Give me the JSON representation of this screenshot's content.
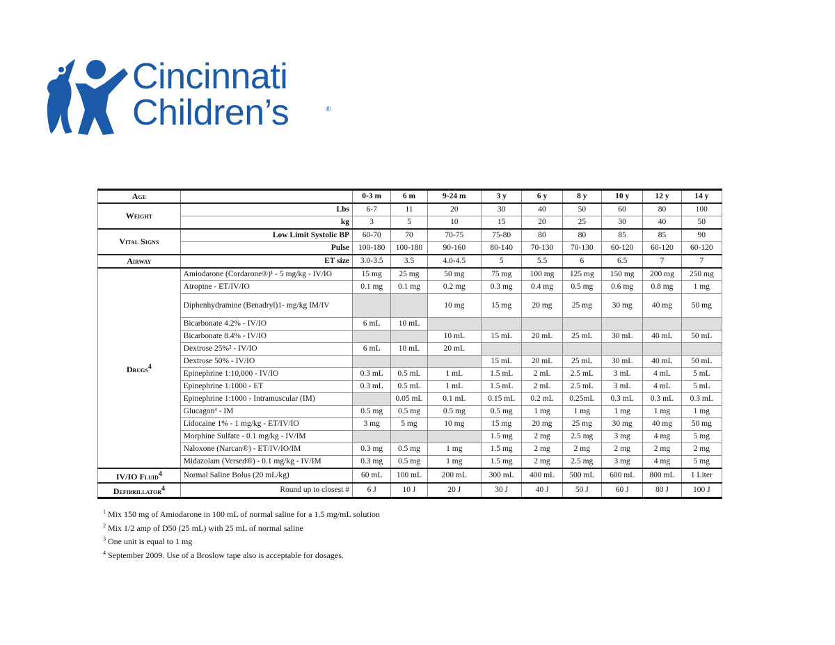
{
  "logo": {
    "line1": "Cincinnati",
    "line2": "Children’s",
    "reg": "®"
  },
  "header": {
    "age_label": "Age",
    "ages": [
      "0-3 m",
      "6 m",
      "9-24 m",
      "3 y",
      "6 y",
      "8 y",
      "10 y",
      "12 y",
      "14 y"
    ]
  },
  "weight": {
    "category": "Weight",
    "lbs_label": "Lbs",
    "lbs": [
      "6-7",
      "11",
      "20",
      "30",
      "40",
      "50",
      "60",
      "80",
      "100"
    ],
    "kg_label": "kg",
    "kg": [
      "3",
      "5",
      "10",
      "15",
      "20",
      "25",
      "30",
      "40",
      "50"
    ]
  },
  "vitals": {
    "category": "Vital Signs",
    "bp_label": "Low Limit Systolic BP",
    "bp": [
      "60-70",
      "70",
      "70-75",
      "75-80",
      "80",
      "80",
      "85",
      "85",
      "90"
    ],
    "pulse_label": "Pulse",
    "pulse": [
      "100-180",
      "100-180",
      "90-160",
      "80-140",
      "70-130",
      "70-130",
      "60-120",
      "60-120",
      "60-120"
    ]
  },
  "airway": {
    "category": "Airway",
    "et_label": "ET size",
    "et": [
      "3.0-3.5",
      "3.5",
      "4.0-4.5",
      "5",
      "5.5",
      "6",
      "6.5",
      "7",
      "7"
    ]
  },
  "drugs": {
    "category": "Drugs",
    "sup": "4",
    "rows": [
      {
        "name": "Amiodarone (Cordarone®)¹ - 5 mg/kg - IV/IO",
        "v": [
          "15 mg",
          "25 mg",
          "50 mg",
          "75 mg",
          "100 mg",
          "125 mg",
          "150 mg",
          "200 mg",
          "250 mg"
        ]
      },
      {
        "name": "Atropine - ET/IV/IO",
        "v": [
          "0.1 mg",
          "0.1 mg",
          "0.2 mg",
          "0.3 mg",
          "0.4 mg",
          "0.5 mg",
          "0.6 mg",
          "0.8 mg",
          "1 mg"
        ]
      },
      {
        "name": "Diphenhydramine (Benadryl)1- mg/kg IM/IV",
        "v": [
          "",
          "",
          "10 mg",
          "15 mg",
          "20 mg",
          "25 mg",
          "30 mg",
          "40 mg",
          "50 mg"
        ]
      },
      {
        "name": "Bicarbonate 4.2% - IV/IO",
        "v": [
          "6 mL",
          "10 mL",
          "",
          "",
          "",
          "",
          "",
          "",
          ""
        ]
      },
      {
        "name": "Bicarbonate 8.4% - IV/IO",
        "v": [
          "",
          "",
          "10 mL",
          "15 mL",
          "20 mL",
          "25 mL",
          "30 mL",
          "40 mL",
          "50 mL"
        ]
      },
      {
        "name": "Dextrose 25%² - IV/IO",
        "v": [
          "6 mL",
          "10 mL",
          "20 mL",
          "",
          "",
          "",
          "",
          "",
          ""
        ]
      },
      {
        "name": "Dextrose 50% - IV/IO",
        "v": [
          "",
          "",
          "",
          "15 mL",
          "20 mL",
          "25 mL",
          "30 mL",
          "40 mL",
          "50 mL"
        ]
      },
      {
        "name": "Epinephrine 1:10,000 - IV/IO",
        "v": [
          "0.3 mL",
          "0.5 mL",
          "1 mL",
          "1.5 mL",
          "2 mL",
          "2.5 mL",
          "3 mL",
          "4 mL",
          "5 mL"
        ]
      },
      {
        "name": "Epinephrine 1:1000 - ET",
        "v": [
          "0.3 mL",
          "0.5 mL",
          "1 mL",
          "1.5 mL",
          "2 mL",
          "2.5 mL",
          "3 mL",
          "4 mL",
          "5 mL"
        ]
      },
      {
        "name": "Epinephrine 1:1000 - Intramuscular (IM)",
        "v": [
          "",
          "0.05 mL",
          "0.1 mL",
          "0.15 mL",
          "0.2 mL",
          "0.25mL",
          "0.3 mL",
          "0.3 mL",
          "0.3 mL"
        ]
      },
      {
        "name": "Glucagon³ - IM",
        "v": [
          "0.5 mg",
          "0.5 mg",
          "0.5 mg",
          "0.5 mg",
          "1 mg",
          "1 mg",
          "1 mg",
          "1 mg",
          "1 mg"
        ]
      },
      {
        "name": "Lidocaine 1% - 1 mg/kg - ET/IV/IO",
        "v": [
          "3 mg",
          "5 mg",
          "10 mg",
          "15 mg",
          "20 mg",
          "25 mg",
          "30 mg",
          "40 mg",
          "50 mg"
        ]
      },
      {
        "name": "Morphine Sulfate - 0.1 mg/kg - IV/IM",
        "v": [
          "",
          "",
          "",
          "1.5 mg",
          "2 mg",
          "2.5 mg",
          "3 mg",
          "4 mg",
          "5 mg"
        ]
      },
      {
        "name": "Naloxone (Narcan®) - ET/IV/IO/IM",
        "v": [
          "0.3 mg",
          "0.5 mg",
          "1 mg",
          "1.5 mg",
          "2 mg",
          "2 mg",
          "2 mg",
          "2 mg",
          "2 mg"
        ]
      },
      {
        "name": "Midazolam (Versed®) - 0.1 mg/kg - IV/IM",
        "v": [
          "0.3 mg",
          "0.5 mg",
          "1 mg",
          "1.5 mg",
          "2 mg",
          "2.5 mg",
          "3 mg",
          "4 mg",
          "5 mg"
        ]
      }
    ]
  },
  "fluid": {
    "category": "IV/IO Fluid",
    "sup": "4",
    "label": "Normal Saline Bolus (20 mL/kg)",
    "v": [
      "60 mL",
      "100 mL",
      "200 mL",
      "300 mL",
      "400 mL",
      "500 mL",
      "600 mL",
      "800 mL",
      "1 Liter"
    ]
  },
  "defib": {
    "category": "Defibrillator",
    "sup": "4",
    "label": "Round up to closest #",
    "v": [
      "6 J",
      "10 J",
      "20 J",
      "30 J",
      "40 J",
      "50 J",
      "60 J",
      "80 J",
      "100 J"
    ]
  },
  "footnotes": [
    {
      "n": "1",
      "text": "Mix 150 mg of Amiodarone in 100 mL of normal saline for a 1.5 mg/mL solution"
    },
    {
      "n": "2",
      "text": "Mix 1/2 amp of D50 (25 mL) with 25 mL of normal saline"
    },
    {
      "n": "3",
      "text": "One unit is equal to 1 mg"
    },
    {
      "n": "4",
      "text": "September 2009. Use of a Broslow tape also is acceptable for dosages."
    }
  ]
}
